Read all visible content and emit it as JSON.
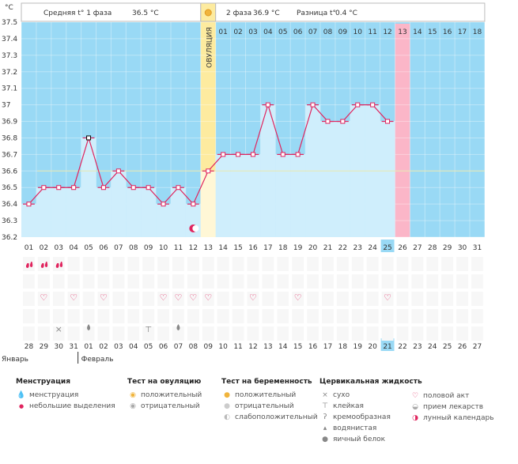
{
  "header": {
    "unit": "°C",
    "phase1_label": "Средняя t° 1 фаза",
    "phase1_value": "36.5 °C",
    "phase2_label": "2 фаза",
    "phase2_value": "36.9 °C",
    "diff_label": "Разница t°",
    "diff_value": "0.4 °C",
    "ovulation_label": "ОВУЛЯЦИЯ"
  },
  "colors": {
    "phase_bg": "#99d9f5",
    "bar_fill": "#cfeefc",
    "ovulation": "#fdeb9f",
    "period_day": "#fbb6c8",
    "line": "#e0245e",
    "cover_line": "#e8e8b0",
    "highlight_day": "#99d9f5"
  },
  "chart_data": {
    "type": "line",
    "title": "",
    "ylabel": "°C",
    "ylim": [
      36.2,
      37.5
    ],
    "yticks": [
      "36.2",
      "36.3",
      "36.4",
      "36.5",
      "36.6",
      "36.7",
      "36.8",
      "36.9",
      "37",
      "37.1",
      "37.2",
      "37.3",
      "37.4",
      "37.5"
    ],
    "cycle_days": [
      "01",
      "02",
      "03",
      "04",
      "05",
      "06",
      "07",
      "08",
      "09",
      "10",
      "11",
      "12",
      "13",
      "14",
      "15",
      "16",
      "17",
      "18",
      "19",
      "20",
      "21",
      "22",
      "23",
      "24",
      "25",
      "26",
      "27",
      "28",
      "29",
      "30",
      "31"
    ],
    "top_phase2_days": [
      "01",
      "02",
      "03",
      "04",
      "05",
      "06",
      "07",
      "08",
      "09",
      "10",
      "11",
      "12",
      "13",
      "14",
      "15",
      "16",
      "17",
      "18"
    ],
    "calendar_dates": [
      "28",
      "29",
      "30",
      "31",
      "01",
      "02",
      "03",
      "04",
      "05",
      "06",
      "07",
      "08",
      "09",
      "10",
      "11",
      "12",
      "13",
      "14",
      "15",
      "16",
      "17",
      "18",
      "19",
      "20",
      "21",
      "22",
      "23",
      "24",
      "25",
      "26",
      "27"
    ],
    "calendar_red": [
      4,
      5,
      11,
      12,
      18,
      19,
      25,
      26
    ],
    "months": [
      "Январь",
      "Февраль"
    ],
    "series": [
      {
        "values": [
          36.4,
          36.5,
          36.5,
          36.5,
          36.8,
          36.5,
          36.6,
          36.5,
          36.5,
          36.4,
          36.5,
          36.4,
          36.6,
          36.7,
          36.7,
          36.7,
          37.0,
          36.7,
          36.7,
          37.0,
          36.9,
          36.9,
          37.0,
          37.0,
          36.9
        ]
      }
    ],
    "coverline": 36.6,
    "ovulation_day": 13,
    "period_start_day": 26,
    "today_day": 25,
    "moon_day": 12
  },
  "markers": {
    "menstruation_days": [
      1,
      2,
      3
    ],
    "sex_days": [
      2,
      4,
      6,
      10,
      11,
      12,
      13,
      16,
      19,
      25
    ],
    "dry_days": [
      3
    ],
    "watery_days": [
      5,
      11
    ],
    "sticky_days": [
      9
    ]
  },
  "legend": {
    "menstruation": {
      "title": "Менструация",
      "items": [
        "менструация",
        "небольшие выделения"
      ]
    },
    "ovulation_test": {
      "title": "Тест на овуляцию",
      "items": [
        "положительный",
        "отрицательный"
      ]
    },
    "pregnancy_test": {
      "title": "Тест на беременность",
      "items": [
        "положительный",
        "отрицательный",
        "слабоположительный"
      ]
    },
    "cervical": {
      "title": "Цервикальная жидкость",
      "items": [
        "сухо",
        "клейкая",
        "кремообразная",
        "водянистая",
        "яичный белок"
      ]
    },
    "other": {
      "items": [
        "половой акт",
        "прием лекарств",
        "лунный календарь"
      ]
    }
  }
}
